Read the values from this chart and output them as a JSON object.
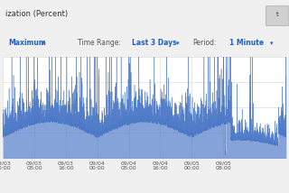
{
  "title_bar_text": "ization (Percent)",
  "x_tick_labels": [
    [
      "09/03",
      "00:00"
    ],
    [
      "09/03",
      "08:00"
    ],
    [
      "09/03",
      "16:00"
    ],
    [
      "09/04",
      "00:00"
    ],
    [
      "09/04",
      "08:00"
    ],
    [
      "09/04",
      "16:00"
    ],
    [
      "09/05",
      "00:00"
    ],
    [
      "09/05",
      "08:00"
    ]
  ],
  "line_color": "#4472c4",
  "fill_color": "#4472c4",
  "fill_alpha": 0.65,
  "background_color": "#ffffff",
  "grid_color": "#dddddd",
  "header_bg": "#e8e8e8",
  "controls_bg": "#f0f0f0",
  "blue": "#2060c0",
  "gray": "#555555",
  "ylim": [
    0,
    100
  ],
  "num_points": 4320,
  "seed": 42
}
